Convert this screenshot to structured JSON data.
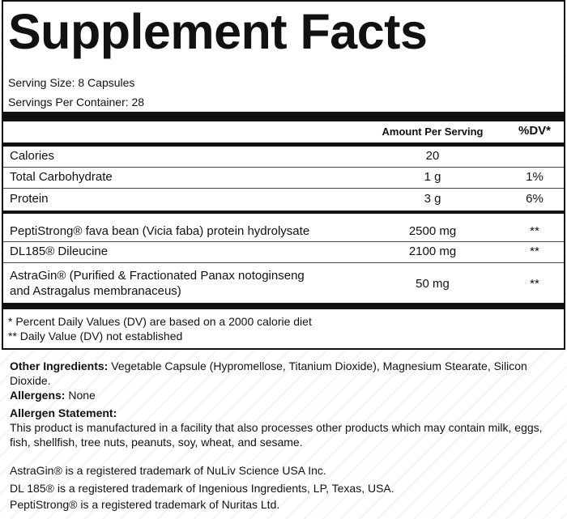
{
  "title": "Supplement Facts",
  "serving_size": "Serving Size: 8 Capsules",
  "servings_per_container": "Servings Per Container: 28",
  "table": {
    "header": [
      "Amount Per Serving",
      "%DV*"
    ],
    "rows": [
      {
        "name": [
          "Calories"
        ],
        "amount": "20"
      },
      {
        "name": [
          "Total Carbohydrate"
        ],
        "amount": "1 g",
        "dv": "1%"
      },
      {
        "name": [
          "Protein"
        ],
        "amount": "3 g",
        "dv": "6%"
      },
      {
        "name": [
          "PeptiStrong® fava bean (Vicia faba) protein hydrolysate"
        ],
        "amount": "2500 mg",
        "dv": "**"
      },
      {
        "name": [
          "DL185®  Dileucine"
        ],
        "amount": "2100 mg",
        "dv": "**"
      },
      {
        "name": [
          "AstraGin® (Purified & Fractionated Panax notoginseng",
          "and Astragalus membranaceus)"
        ],
        "amount": "50 mg",
        "dv": "**"
      }
    ]
  },
  "footnotes": [
    "* Percent Daily Values (DV) are based on a 2000 calorie diet",
    "** Daily Value (DV) not established"
  ],
  "other_ingredients": {
    "label": "Other Ingredients:",
    "text": "Vegetable Capsule (Hypromellose, Titanium Dioxide), Magnesium Stearate, Silicon Dioxide."
  },
  "allergens": {
    "label": "Allergens:",
    "text": "None"
  },
  "allergen_statement": {
    "label": "Allergen Statement:",
    "text": "This product is manufactured in a facility that also processes other products which may contain milk, eggs, fish, shellfish, tree nuts, peanuts, soy, wheat, and sesame."
  },
  "trademarks": [
    "AstraGin® is a registered trademark of NuLiv Science USA Inc.",
    "DL 185® is a registered trademark of Ingenious Ingredients, LP, Texas, USA.",
    "PeptiStrong® is a registered trademark of Nuritas Ltd."
  ]
}
